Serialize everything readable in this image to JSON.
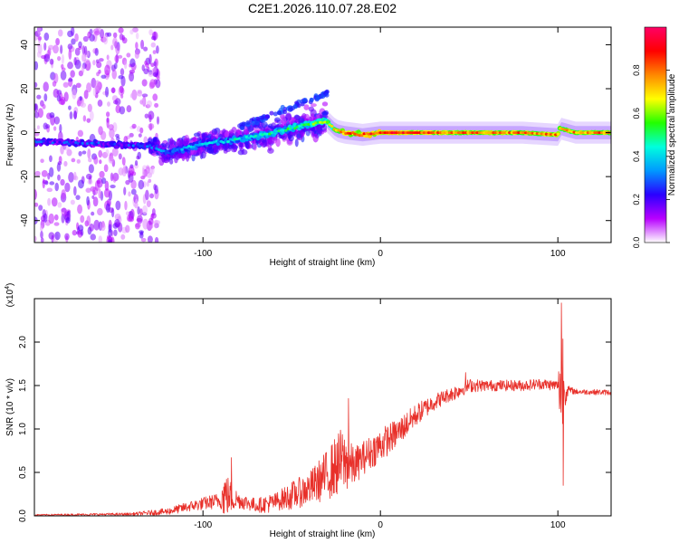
{
  "title": "C2E1.2026.110.07.28.E02",
  "chart_data": [
    {
      "type": "heatmap",
      "title": "C2E1.2026.110.07.28.E02",
      "xlabel": "Height of straight line (km)",
      "ylabel": "Frequency (Hz)",
      "xlim": [
        -195,
        130
      ],
      "ylim": [
        -50,
        48
      ],
      "xticks": [
        -100,
        0,
        100
      ],
      "xtick_labels": [
        "-100",
        "0",
        "100"
      ],
      "yticks": [
        -40,
        -20,
        0,
        20,
        40
      ],
      "ytick_labels": [
        "-40",
        "-20",
        "0",
        "20",
        "40"
      ],
      "ridge": {
        "description": "dominant frequency track",
        "x": [
          -195,
          -130,
          -120,
          -100,
          -80,
          -60,
          -40,
          -33,
          -30,
          -25,
          -20,
          -10,
          0,
          10,
          20,
          40,
          60,
          80,
          100,
          101,
          110,
          130
        ],
        "frequency": [
          -4,
          -6,
          -9,
          -5,
          -3,
          0,
          4,
          5,
          5,
          1,
          0,
          -1,
          0,
          0,
          0,
          0,
          0,
          0,
          -1,
          2,
          0,
          0
        ],
        "amplitude": [
          0.22,
          0.25,
          0.3,
          0.35,
          0.4,
          0.45,
          0.5,
          0.62,
          0.6,
          0.72,
          0.82,
          0.85,
          0.88,
          0.9,
          0.85,
          0.8,
          0.78,
          0.8,
          0.78,
          0.7,
          0.76,
          0.8
        ]
      },
      "colorbar": {
        "label": "Normalized spectral amplitude",
        "range": [
          0.0,
          1.0
        ],
        "ticks": [
          "0.0",
          "0.2",
          "0.4",
          "0.6",
          "0.8"
        ],
        "tick_values": [
          0.0,
          0.2,
          0.4,
          0.6,
          0.8
        ],
        "colormap": [
          "#ffffff",
          "#b800ff",
          "#2a00ff",
          "#0099ff",
          "#00ffdd",
          "#22ff00",
          "#ffff00",
          "#ff8800",
          "#ff0000",
          "#ff0066"
        ]
      }
    },
    {
      "type": "line",
      "xlabel": "Height of straight line (km)",
      "ylabel": "SNR (10 * v/v)",
      "y_multiplier_label": "(x10",
      "y_multiplier_exp": "4",
      "y_multiplier_close": ")",
      "xlim": [
        -195,
        130
      ],
      "ylim": [
        0,
        2.5
      ],
      "xticks": [
        -100,
        0,
        100
      ],
      "xtick_labels": [
        "-100",
        "0",
        "100"
      ],
      "yticks": [
        0.0,
        0.5,
        1.0,
        1.5,
        2.0
      ],
      "ytick_labels": [
        "0.0",
        "0.5",
        "1.0",
        "1.5",
        "2.0"
      ],
      "line_color": "#e8302a",
      "envelope_x": [
        -195,
        -140,
        -120,
        -105,
        -90,
        -88,
        -80,
        -70,
        -60,
        -50,
        -40,
        -30,
        -22,
        -15,
        -10,
        0,
        10,
        20,
        30,
        40,
        45,
        50,
        60,
        80,
        90,
        100,
        102,
        103,
        104,
        106,
        110,
        130
      ],
      "envelope_mean": [
        0.01,
        0.02,
        0.05,
        0.12,
        0.18,
        0.25,
        0.18,
        0.12,
        0.15,
        0.22,
        0.3,
        0.45,
        0.6,
        0.55,
        0.65,
        0.8,
        0.95,
        1.15,
        1.3,
        1.4,
        1.45,
        1.5,
        1.5,
        1.5,
        1.52,
        1.5,
        1.5,
        1.45,
        1.42,
        1.45,
        1.43,
        1.42
      ],
      "envelope_spread": [
        0.01,
        0.02,
        0.05,
        0.08,
        0.12,
        0.35,
        0.12,
        0.1,
        0.15,
        0.25,
        0.3,
        0.45,
        0.6,
        0.35,
        0.3,
        0.3,
        0.25,
        0.2,
        0.15,
        0.12,
        0.1,
        0.1,
        0.08,
        0.08,
        0.08,
        0.08,
        0.9,
        1.1,
        0.2,
        0.06,
        0.04,
        0.04
      ],
      "peaks": [
        {
          "x": -84,
          "y": 0.67
        },
        {
          "x": -18,
          "y": 1.35
        },
        {
          "x": 48,
          "y": 1.65
        },
        {
          "x": 102,
          "y": 2.45
        },
        {
          "x": 103,
          "y": 0.35
        }
      ]
    }
  ]
}
